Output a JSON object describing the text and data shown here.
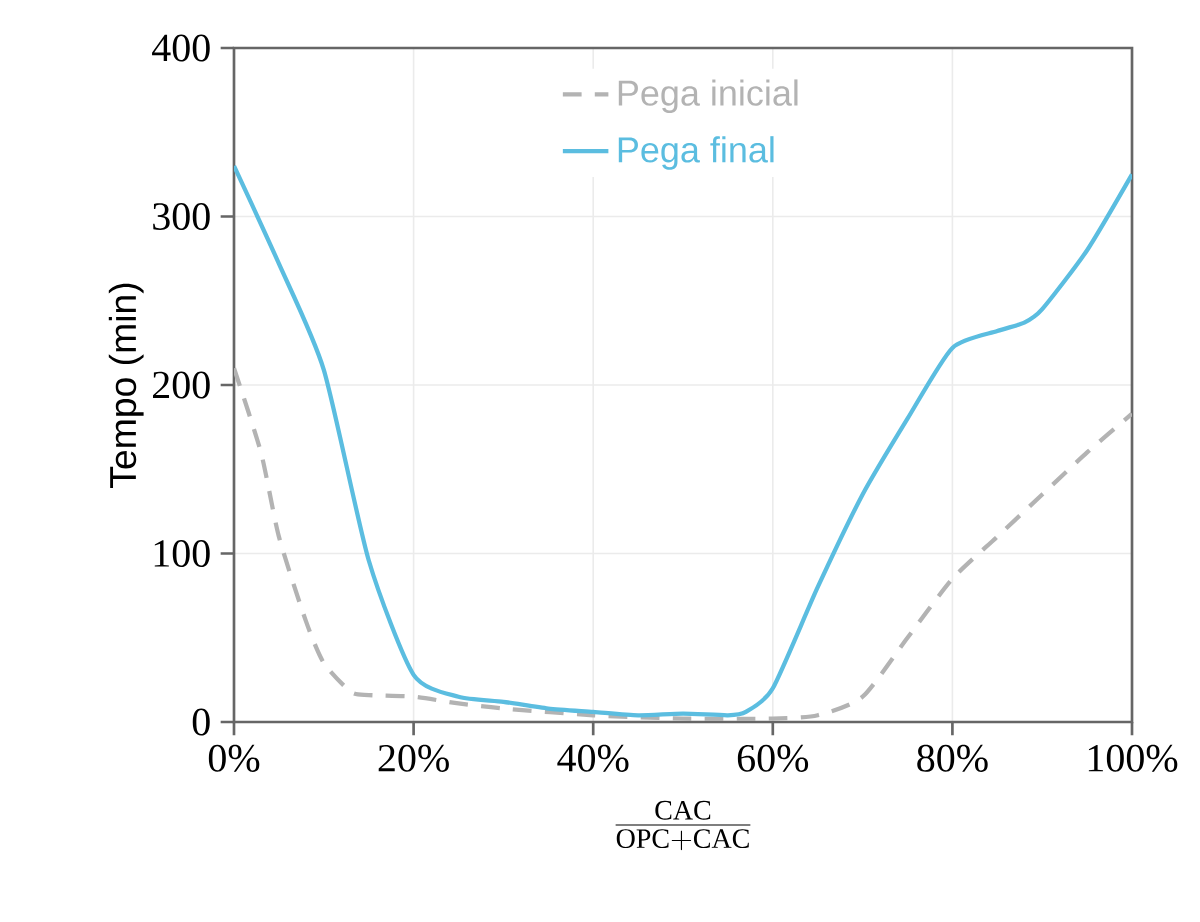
{
  "chart_data": {
    "type": "line",
    "xlabel": "\\frac{\\mathrm{CAC}}{\\mathrm{OPC{+}CAC}}",
    "ylabel": "Tempo (min)",
    "xlim": [
      0,
      100
    ],
    "ylim": [
      0,
      400
    ],
    "xticks": [
      {
        "value": 0,
        "label": "0%"
      },
      {
        "value": 20,
        "label": "20%"
      },
      {
        "value": 40,
        "label": "40%"
      },
      {
        "value": 60,
        "label": "60%"
      },
      {
        "value": 80,
        "label": "80%"
      },
      {
        "value": 100,
        "label": "100%"
      }
    ],
    "yticks": [
      0,
      100,
      200,
      300,
      400
    ],
    "grid": true,
    "legend": "top",
    "series": [
      {
        "name": "Pega inicial",
        "color": "#b3b3b3",
        "line_style": "dashed",
        "x": [
          0,
          3,
          5,
          8,
          10,
          13,
          15,
          20,
          25,
          30,
          40,
          50,
          60,
          65,
          70,
          75,
          80,
          85,
          90,
          95,
          100
        ],
        "values": [
          210,
          160,
          110,
          60,
          35,
          18,
          16,
          15,
          11,
          8,
          4,
          2,
          2,
          4,
          15,
          50,
          85,
          110,
          135,
          160,
          183
        ]
      },
      {
        "name": "Pega final",
        "color": "#5bbde0",
        "line_style": "solid",
        "x": [
          0,
          5,
          10,
          15,
          20,
          25,
          30,
          35,
          40,
          45,
          50,
          55,
          57,
          60,
          65,
          70,
          75,
          80,
          85,
          88,
          90,
          95,
          100
        ],
        "values": [
          330,
          272,
          209,
          96,
          28,
          15,
          12,
          8,
          6,
          4,
          5,
          4,
          6,
          20,
          80,
          135,
          180,
          222,
          232,
          237,
          245,
          280,
          325
        ]
      }
    ]
  }
}
